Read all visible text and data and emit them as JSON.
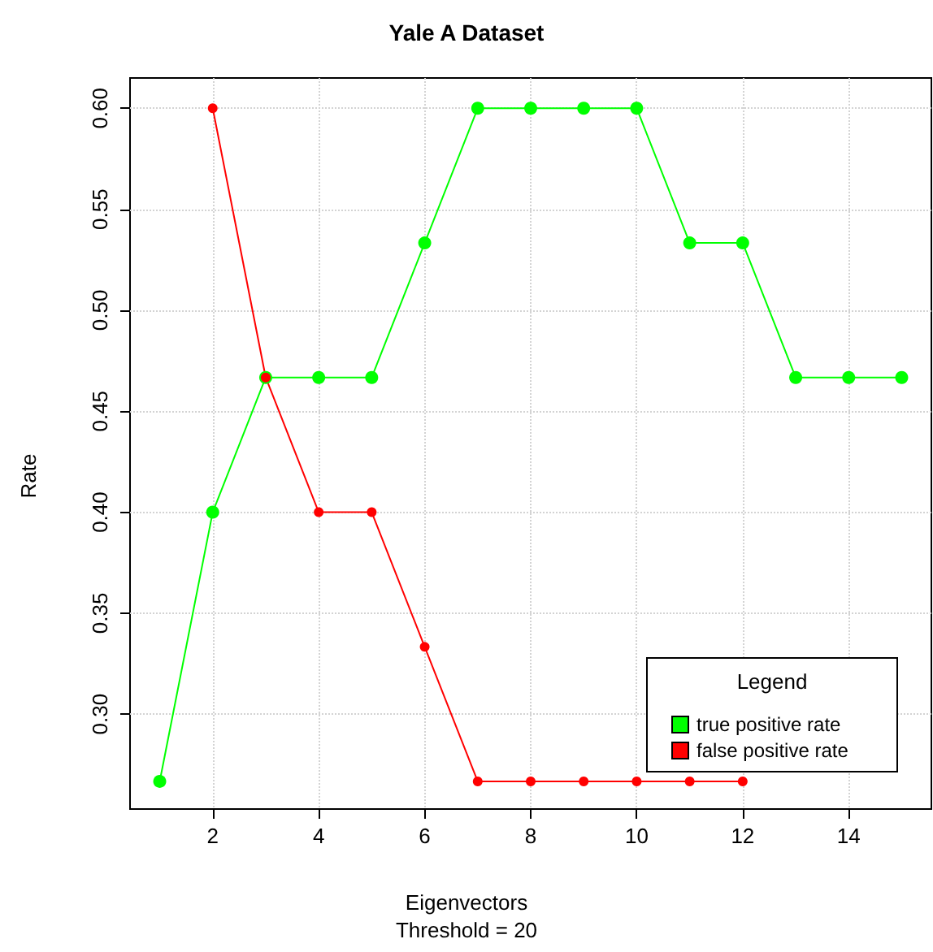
{
  "chart_data": {
    "type": "line",
    "title": "Yale A Dataset",
    "xlabel": "Eigenvectors",
    "ylabel": "Rate",
    "annotations": [
      "Threshold = 20"
    ],
    "x": [
      1,
      2,
      3,
      4,
      5,
      6,
      7,
      8,
      9,
      10,
      11,
      12,
      13,
      14,
      15
    ],
    "series": [
      {
        "name": "true positive rate",
        "color": "#00ff00",
        "values": [
          0.2667,
          0.4,
          0.4667,
          0.4667,
          0.4667,
          0.5333,
          0.6,
          0.6,
          0.6,
          0.6,
          0.5333,
          0.5333,
          0.4667,
          0.4667,
          0.4667
        ]
      },
      {
        "name": "false positive rate",
        "color": "#ff0000",
        "values": [
          null,
          0.6,
          0.4667,
          0.4,
          0.4,
          0.3333,
          0.2667,
          0.2667,
          0.2667,
          0.2667,
          0.2667,
          0.2667,
          null,
          null,
          null
        ]
      }
    ],
    "xlim": [
      0.44,
      15.56
    ],
    "xticks": [
      2,
      4,
      6,
      8,
      10,
      12,
      14
    ],
    "ylim": [
      0.253,
      0.615
    ],
    "yticks": [
      {
        "value": 0.3,
        "label": "0.30"
      },
      {
        "value": 0.35,
        "label": "0.35"
      },
      {
        "value": 0.4,
        "label": "0.40"
      },
      {
        "value": 0.45,
        "label": "0.45"
      },
      {
        "value": 0.5,
        "label": "0.50"
      },
      {
        "value": 0.55,
        "label": "0.55"
      },
      {
        "value": 0.6,
        "label": "0.60"
      }
    ],
    "grid": true,
    "legend": "bottom right",
    "legend_title": "Legend",
    "marker": "circle",
    "line_style": "solid"
  }
}
